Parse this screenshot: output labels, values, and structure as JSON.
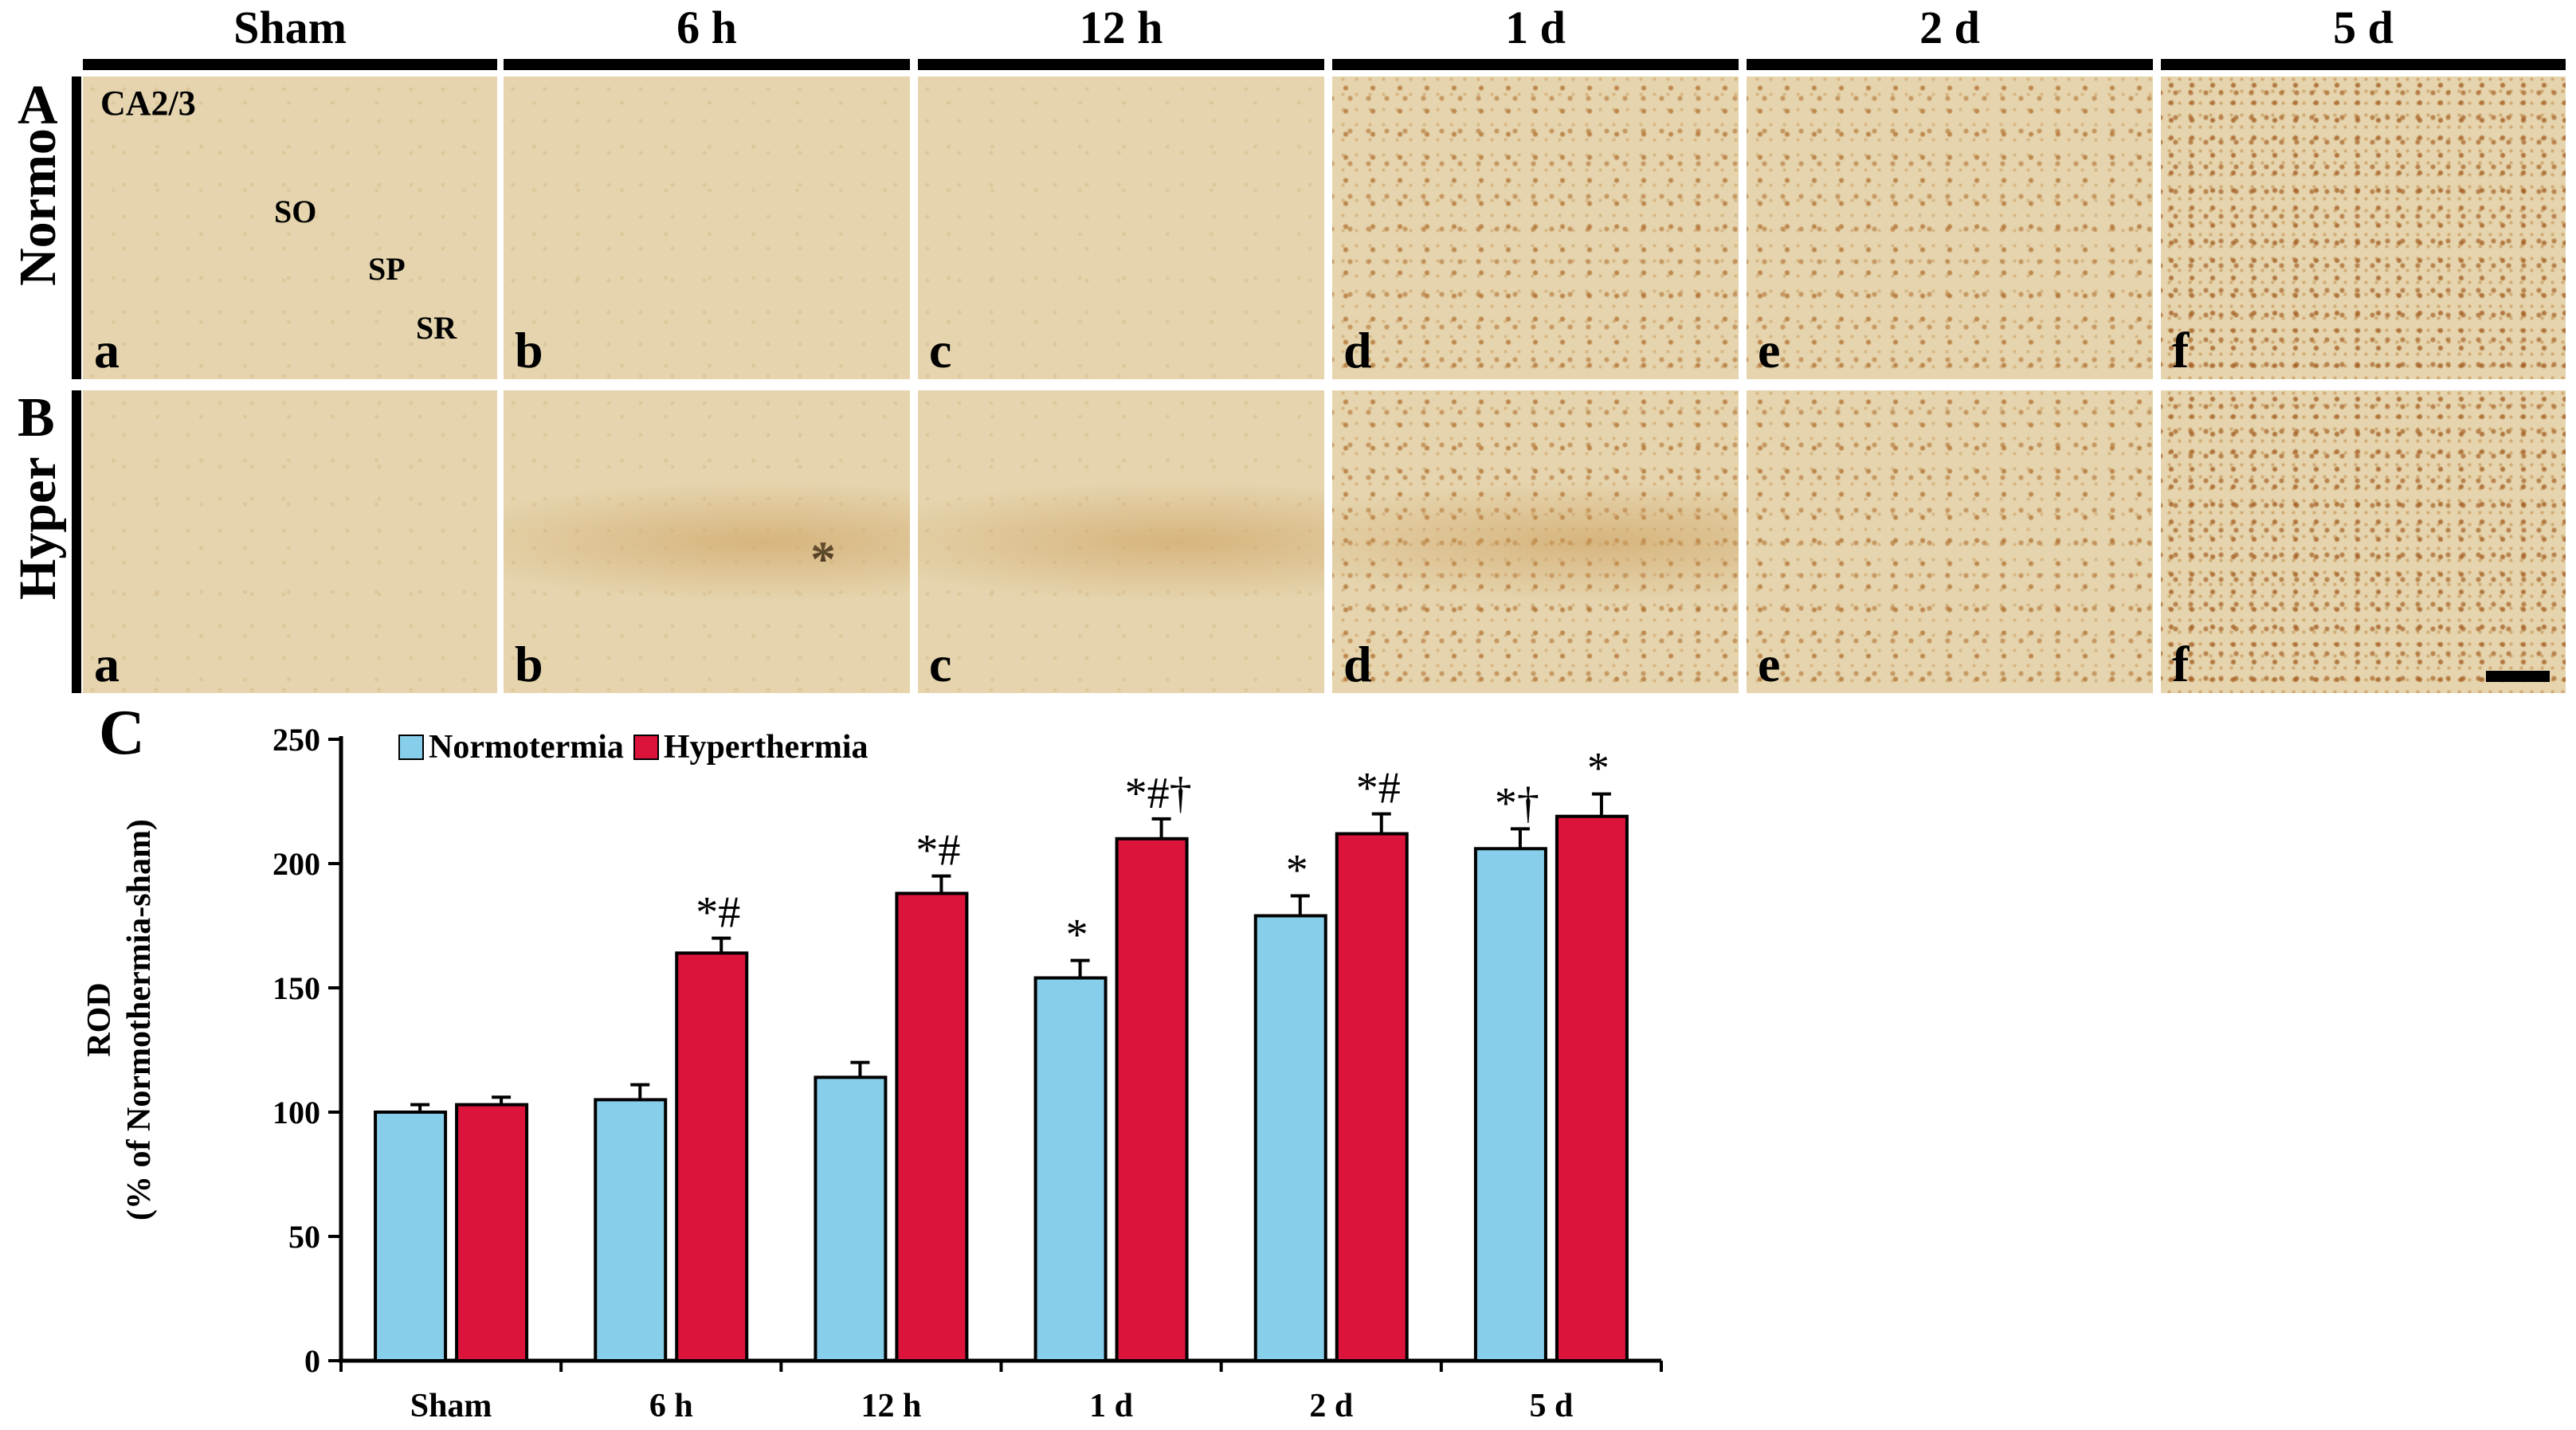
{
  "columns": [
    "Sham",
    "6 h",
    "12 h",
    "1 d",
    "2 d",
    "5 d"
  ],
  "rows": [
    {
      "letter": "A",
      "name": "Normo",
      "panels": [
        "a",
        "b",
        "c",
        "d",
        "e",
        "f"
      ]
    },
    {
      "letter": "B",
      "name": "Hyper",
      "panels": [
        "a",
        "b",
        "c",
        "d",
        "e",
        "f"
      ]
    }
  ],
  "region": "CA2/3",
  "layers": [
    "SO",
    "SP",
    "SR"
  ],
  "asterisk": "*",
  "chart_letter": "C",
  "chart_data": {
    "type": "bar",
    "categories": [
      "Sham",
      "6 h",
      "12 h",
      "1 d",
      "2 d",
      "5 d"
    ],
    "series": [
      {
        "name": "Normotermia",
        "color": "#87ceeb",
        "values": [
          100,
          105,
          114,
          154,
          179,
          206
        ],
        "errors": [
          3,
          6,
          6,
          7,
          8,
          8
        ],
        "annotations": [
          "",
          "",
          "",
          "*",
          "*",
          "*†"
        ]
      },
      {
        "name": "Hyperthermia",
        "color": "#dc143c",
        "values": [
          103,
          164,
          188,
          210,
          212,
          219
        ],
        "errors": [
          3,
          6,
          7,
          8,
          8,
          9
        ],
        "annotations": [
          "",
          "*#",
          "*#",
          "*#†",
          "*#",
          "*"
        ]
      }
    ],
    "ylabel_line1": "ROD",
    "ylabel_line2": "(% of Normothermia-sham)",
    "ylim": [
      0,
      250
    ],
    "yticks": [
      0,
      50,
      100,
      150,
      200,
      250
    ],
    "legend": "top-left"
  }
}
